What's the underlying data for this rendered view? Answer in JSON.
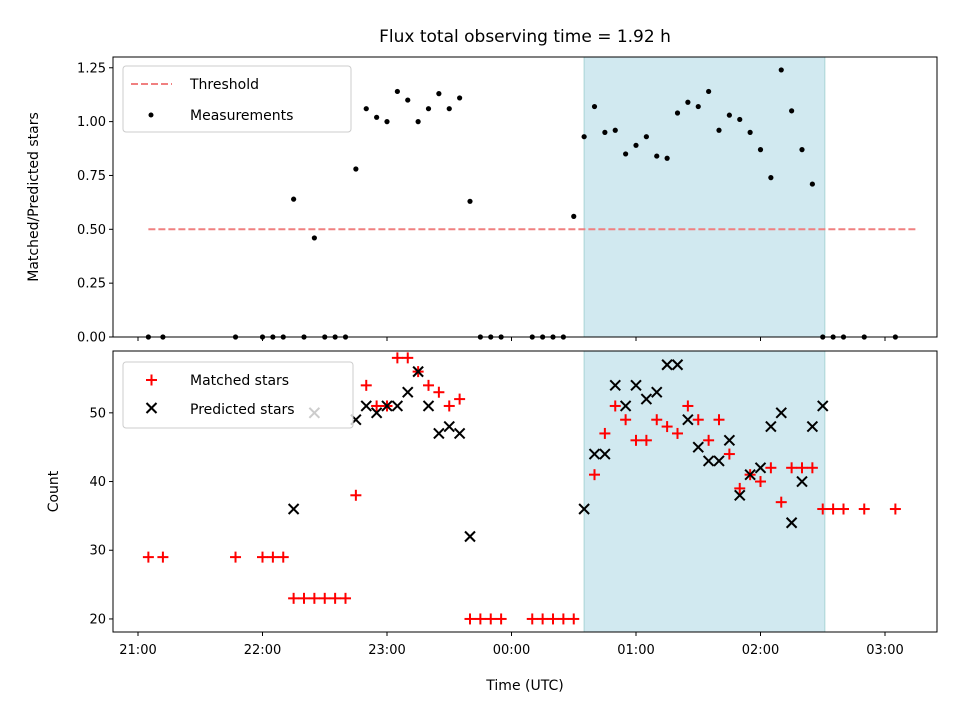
{
  "chart_data": [
    {
      "type": "scatter",
      "title": "Flux total observing time = 1.92 h",
      "xlabel": "",
      "ylabel": "Matched/Predicted stars",
      "ylim": [
        0,
        1.3
      ],
      "yticks": [
        "0.00",
        "0.25",
        "0.50",
        "0.75",
        "1.00",
        "1.25"
      ],
      "shaded_region": {
        "x0": "00:35",
        "x1": "02:31",
        "color": "#d1e9f0"
      },
      "legend_position": "top-left",
      "series": [
        {
          "name": "Threshold",
          "type": "line",
          "style": "dashed",
          "color": "#f08080",
          "x": [
            "21:05",
            "03:15"
          ],
          "y": [
            0.5,
            0.5
          ]
        },
        {
          "name": "Measurements",
          "type": "scatter",
          "color": "#000000",
          "x": [
            "21:05",
            "21:12",
            "21:47",
            "22:00",
            "22:05",
            "22:10",
            "22:15",
            "22:20",
            "22:25",
            "22:30",
            "22:35",
            "22:40",
            "22:45",
            "22:50",
            "22:55",
            "23:00",
            "23:05",
            "23:10",
            "23:15",
            "23:20",
            "23:25",
            "23:30",
            "23:35",
            "23:40",
            "23:45",
            "23:50",
            "23:55",
            "00:10",
            "00:15",
            "00:20",
            "00:25",
            "00:30",
            "00:35",
            "00:40",
            "00:45",
            "00:50",
            "00:55",
            "01:00",
            "01:05",
            "01:10",
            "01:15",
            "01:20",
            "01:25",
            "01:30",
            "01:35",
            "01:40",
            "01:45",
            "01:50",
            "01:55",
            "02:00",
            "02:05",
            "02:10",
            "02:15",
            "02:20",
            "02:25",
            "02:30",
            "02:35",
            "02:40",
            "02:50",
            "03:05"
          ],
          "y": [
            0,
            0,
            0,
            0,
            0,
            0,
            0.64,
            0,
            0.46,
            0,
            0,
            0,
            0.78,
            1.06,
            1.02,
            1.0,
            1.14,
            1.1,
            1.0,
            1.06,
            1.13,
            1.06,
            1.11,
            0.63,
            0,
            0,
            0,
            0,
            0,
            0,
            0,
            0.56,
            0.93,
            1.07,
            0.95,
            0.96,
            0.85,
            0.89,
            0.93,
            0.84,
            0.83,
            1.04,
            1.09,
            1.07,
            1.14,
            0.96,
            1.03,
            1.01,
            0.95,
            0.87,
            0.74,
            1.24,
            1.05,
            0.87,
            0.71,
            0,
            0,
            0,
            0,
            0
          ]
        }
      ]
    },
    {
      "type": "scatter",
      "title": "",
      "xlabel": "Time (UTC)",
      "ylabel": "Count",
      "ylim": [
        18.1,
        59
      ],
      "yticks": [
        "20",
        "30",
        "40",
        "50"
      ],
      "xticks": [
        "21:00",
        "22:00",
        "23:00",
        "00:00",
        "01:00",
        "02:00",
        "03:00"
      ],
      "shaded_region": {
        "x0": "00:35",
        "x1": "02:31",
        "color": "#d1e9f0"
      },
      "legend_position": "top-left",
      "series": [
        {
          "name": "Matched stars",
          "marker": "+",
          "color": "#ff0000",
          "x": [
            "21:05",
            "21:12",
            "21:47",
            "22:00",
            "22:05",
            "22:10",
            "22:15",
            "22:20",
            "22:25",
            "22:30",
            "22:35",
            "22:40",
            "22:45",
            "22:50",
            "22:55",
            "23:00",
            "23:05",
            "23:10",
            "23:15",
            "23:20",
            "23:25",
            "23:30",
            "23:35",
            "23:40",
            "23:45",
            "23:50",
            "23:55",
            "00:10",
            "00:15",
            "00:20",
            "00:25",
            "00:30",
            "00:40",
            "00:45",
            "00:50",
            "00:55",
            "01:00",
            "01:05",
            "01:10",
            "01:15",
            "01:20",
            "01:25",
            "01:30",
            "01:35",
            "01:40",
            "01:45",
            "01:50",
            "01:55",
            "02:00",
            "02:05",
            "02:10",
            "02:15",
            "02:20",
            "02:25",
            "02:30",
            "02:35",
            "02:40",
            "02:50",
            "03:05"
          ],
          "y": [
            29,
            29,
            29,
            29,
            29,
            29,
            23,
            23,
            23,
            23,
            23,
            23,
            38,
            54,
            51,
            51,
            58,
            58,
            56,
            54,
            53,
            51,
            52,
            20,
            20,
            20,
            20,
            20,
            20,
            20,
            20,
            20,
            41,
            47,
            51,
            49,
            46,
            46,
            49,
            48,
            47,
            51,
            49,
            46,
            49,
            44,
            39,
            41,
            40,
            42,
            37,
            42,
            42,
            42,
            36,
            36,
            36,
            36,
            36
          ]
        },
        {
          "name": "Predicted stars",
          "marker": "x",
          "color": "#000000",
          "x": [
            "22:15",
            "22:25",
            "22:45",
            "22:50",
            "22:55",
            "23:00",
            "23:05",
            "23:10",
            "23:15",
            "23:20",
            "23:25",
            "23:30",
            "23:35",
            "23:40",
            "23:45",
            "00:35",
            "00:40",
            "00:45",
            "00:50",
            "00:55",
            "01:00",
            "01:05",
            "01:10",
            "01:15",
            "01:20",
            "01:25",
            "01:30",
            "01:35",
            "01:40",
            "01:45",
            "01:50",
            "01:55",
            "02:00",
            "02:05",
            "02:10",
            "02:15",
            "02:20",
            "02:25",
            "02:30"
          ],
          "y": [
            36,
            50,
            49,
            51,
            50,
            51,
            51,
            53,
            56,
            51,
            47,
            48,
            47,
            32,
            null,
            36,
            44,
            44,
            54,
            51,
            54,
            52,
            53,
            57,
            57,
            49,
            45,
            43,
            43,
            46,
            38,
            41,
            42,
            48,
            50,
            34,
            40,
            48,
            51
          ]
        }
      ]
    }
  ]
}
